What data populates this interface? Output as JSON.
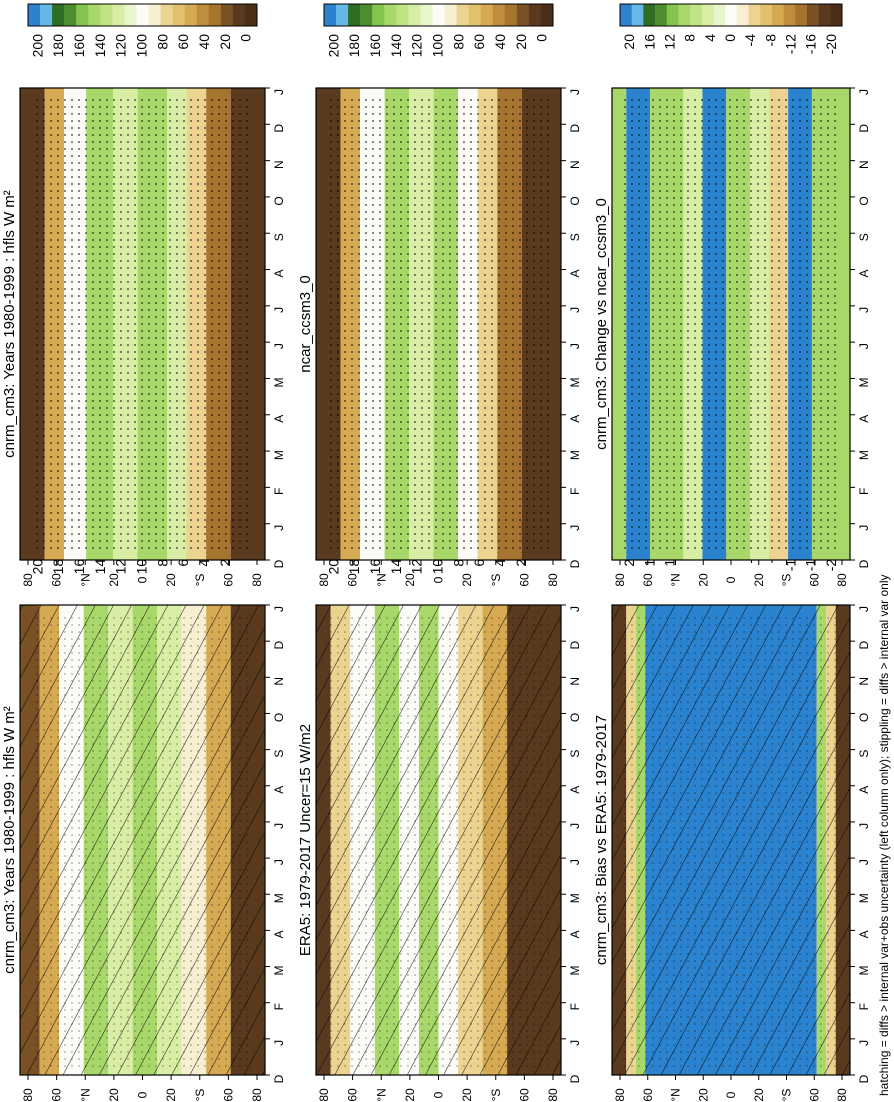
{
  "figure": {
    "footer": "hatching = diffs > internal var+obs uncertainty (left column only); stippling = diffs > internal var only"
  },
  "chart_data": [
    {
      "type": "heatmap",
      "panel": "top-left",
      "title": "cnrm_cm3: Years 1980-1999 : hfls W m²",
      "xlabel": "",
      "ylabel": "",
      "x_ticks": [
        "D",
        "J",
        "F",
        "M",
        "A",
        "M",
        "J",
        "J",
        "A",
        "S",
        "O",
        "N",
        "D",
        "J"
      ],
      "y_ticks": [
        "80",
        "60",
        "°N",
        "20",
        "0",
        "20",
        "°S",
        "60",
        "80"
      ],
      "colorbar": {
        "labels": [
          "200",
          "180",
          "160",
          "140",
          "120",
          "100",
          "80",
          "60",
          "40",
          "20",
          "0"
        ],
        "range": [
          0,
          200
        ]
      },
      "overlay": [
        "hatching",
        "stippling"
      ]
    },
    {
      "type": "heatmap",
      "panel": "top-right",
      "title": "cnrm_cm3: Years 1980-1999 : hfls W m²",
      "xlabel": "",
      "ylabel": "",
      "x_ticks": [
        "D",
        "J",
        "F",
        "M",
        "A",
        "M",
        "J",
        "J",
        "A",
        "S",
        "O",
        "N",
        "D",
        "J"
      ],
      "y_ticks": [
        "80",
        "60",
        "°N",
        "20",
        "0",
        "20",
        "°S",
        "60",
        "80"
      ],
      "colorbar": {
        "labels": [
          "200",
          "180",
          "160",
          "140",
          "120",
          "100",
          "80",
          "60",
          "40",
          "20",
          "0"
        ],
        "range": [
          0,
          200
        ]
      },
      "overlay": [
        "stippling"
      ]
    },
    {
      "type": "heatmap",
      "panel": "middle-left",
      "title": "ERA5: 1979-2017 Uncer=15 W/m2",
      "xlabel": "",
      "ylabel": "",
      "x_ticks": [
        "D",
        "J",
        "F",
        "M",
        "A",
        "M",
        "J",
        "J",
        "A",
        "S",
        "O",
        "N",
        "D",
        "J"
      ],
      "y_ticks": [
        "80",
        "60",
        "°N",
        "20",
        "0",
        "20",
        "°S",
        "60",
        "80"
      ],
      "colorbar": {
        "labels": [
          "200",
          "180",
          "160",
          "140",
          "120",
          "100",
          "80",
          "60",
          "40",
          "20",
          "0"
        ],
        "range": [
          0,
          200
        ]
      },
      "overlay": [
        "hatching",
        "stippling"
      ]
    },
    {
      "type": "heatmap",
      "panel": "middle-right",
      "title": "ncar_ccsm3_0",
      "xlabel": "",
      "ylabel": "",
      "x_ticks": [
        "D",
        "J",
        "F",
        "M",
        "A",
        "M",
        "J",
        "J",
        "A",
        "S",
        "O",
        "N",
        "D",
        "J"
      ],
      "y_ticks": [
        "80",
        "60",
        "°N",
        "20",
        "0",
        "20",
        "°S",
        "60",
        "80"
      ],
      "colorbar": {
        "labels": [
          "200",
          "180",
          "160",
          "140",
          "120",
          "100",
          "80",
          "60",
          "40",
          "20",
          "0"
        ],
        "range": [
          0,
          200
        ]
      },
      "overlay": [
        "stippling"
      ]
    },
    {
      "type": "heatmap",
      "panel": "bottom-left",
      "title": "cnrm_cm3: Bias vs ERA5: 1979-2017",
      "xlabel": "",
      "ylabel": "",
      "x_ticks": [
        "D",
        "J",
        "F",
        "M",
        "A",
        "M",
        "J",
        "J",
        "A",
        "S",
        "O",
        "N",
        "D",
        "J"
      ],
      "y_ticks": [
        "80",
        "60",
        "°N",
        "20",
        "0",
        "20",
        "°S",
        "60",
        "80"
      ],
      "colorbar": {
        "labels": [
          "20",
          "16",
          "12",
          "8",
          "4",
          "0",
          "-4",
          "-8",
          "-12",
          "-16",
          "-20"
        ],
        "range": [
          -20,
          20
        ]
      },
      "overlay": [
        "hatching",
        "stippling"
      ]
    },
    {
      "type": "heatmap",
      "panel": "bottom-right",
      "title": "cnrm_cm3: Change vs ncar_ccsm3_0",
      "xlabel": "",
      "ylabel": "",
      "x_ticks": [
        "D",
        "J",
        "F",
        "M",
        "A",
        "M",
        "J",
        "J",
        "A",
        "S",
        "O",
        "N",
        "D",
        "J"
      ],
      "y_ticks": [
        "80",
        "60",
        "°N",
        "20",
        "0",
        "20",
        "°S",
        "60",
        "80"
      ],
      "colorbar": {
        "labels": [
          "20",
          "16",
          "12",
          "8",
          "4",
          "0",
          "-4",
          "-8",
          "-12",
          "-16",
          "-20"
        ],
        "range": [
          -20,
          20
        ]
      },
      "overlay": [
        "stippling"
      ]
    }
  ],
  "colors": {
    "deep_brown": "#5a3a1e",
    "brown": "#7a5025",
    "mid_brown": "#a7742f",
    "tan": "#d6aa52",
    "light_tan": "#ecd490",
    "cream": "#f7efd0",
    "white": "#fcfcf7",
    "light_green": "#d7eea4",
    "green": "#a9d86a",
    "mid_green": "#85c350",
    "dark_green": "#4d8f2f",
    "darker_green": "#2e6d24",
    "light_blue": "#66b8e6",
    "blue": "#2b83cf"
  }
}
